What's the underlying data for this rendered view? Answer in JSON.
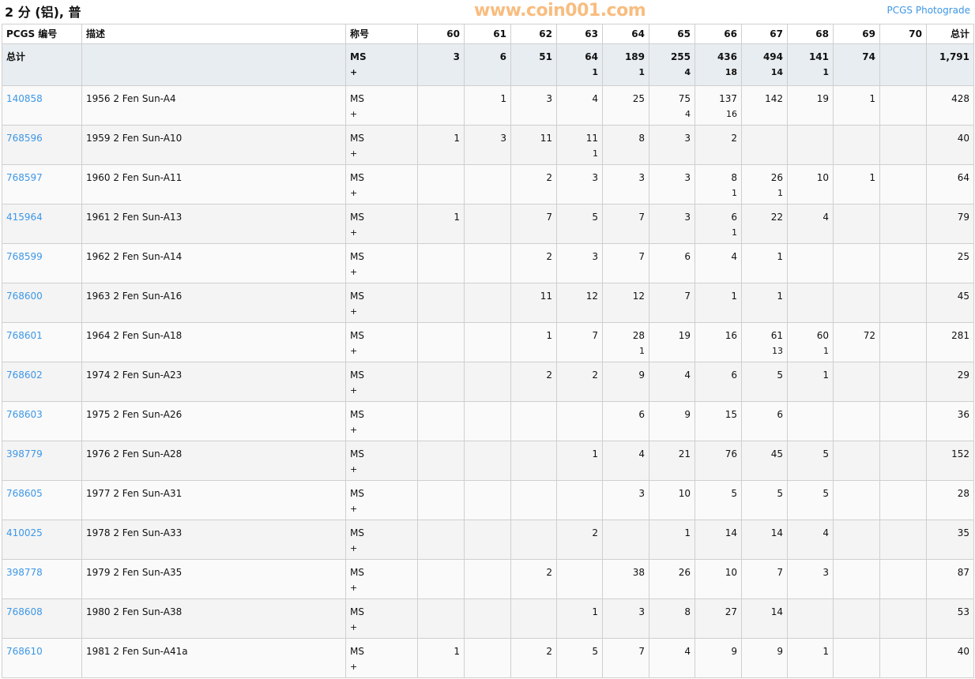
{
  "title": "2 分 (铝), 普",
  "photograde_link": "PCGS Photograde",
  "headers": {
    "pcgs": "PCGS 编号",
    "desc": "描述",
    "designation": "称号",
    "grades": [
      "60",
      "61",
      "62",
      "63",
      "64",
      "65",
      "66",
      "67",
      "68",
      "69",
      "70"
    ],
    "total": "总计"
  },
  "totals": {
    "label": "总计",
    "designation": "MS",
    "plus": "+",
    "cells": [
      [
        "3",
        ""
      ],
      [
        "6",
        ""
      ],
      [
        "51",
        ""
      ],
      [
        "64",
        "1"
      ],
      [
        "189",
        "1"
      ],
      [
        "255",
        "4"
      ],
      [
        "436",
        "18"
      ],
      [
        "494",
        "14"
      ],
      [
        "141",
        "1"
      ],
      [
        "74",
        ""
      ],
      [
        "",
        ""
      ]
    ],
    "total": "1,791"
  },
  "rows": [
    {
      "pcgs": "140858",
      "desc": "1956 2 Fen Sun-A4",
      "designation": "MS",
      "plus": "+",
      "cells": [
        [
          "",
          ""
        ],
        [
          "1",
          ""
        ],
        [
          "3",
          ""
        ],
        [
          "4",
          ""
        ],
        [
          "25",
          ""
        ],
        [
          "75",
          "4"
        ],
        [
          "137",
          "16"
        ],
        [
          "142",
          ""
        ],
        [
          "19",
          ""
        ],
        [
          "1",
          ""
        ],
        [
          "",
          ""
        ]
      ],
      "total": "428"
    },
    {
      "pcgs": "768596",
      "desc": "1959 2 Fen Sun-A10",
      "designation": "MS",
      "plus": "+",
      "cells": [
        [
          "1",
          ""
        ],
        [
          "3",
          ""
        ],
        [
          "11",
          ""
        ],
        [
          "11",
          "1"
        ],
        [
          "8",
          ""
        ],
        [
          "3",
          ""
        ],
        [
          "2",
          ""
        ],
        [
          "",
          ""
        ],
        [
          "",
          ""
        ],
        [
          "",
          ""
        ],
        [
          "",
          ""
        ]
      ],
      "total": "40"
    },
    {
      "pcgs": "768597",
      "desc": "1960 2 Fen Sun-A11",
      "designation": "MS",
      "plus": "+",
      "cells": [
        [
          "",
          ""
        ],
        [
          "",
          ""
        ],
        [
          "2",
          ""
        ],
        [
          "3",
          ""
        ],
        [
          "3",
          ""
        ],
        [
          "3",
          ""
        ],
        [
          "8",
          "1"
        ],
        [
          "26",
          "1"
        ],
        [
          "10",
          ""
        ],
        [
          "1",
          ""
        ],
        [
          "",
          ""
        ]
      ],
      "total": "64"
    },
    {
      "pcgs": "415964",
      "desc": "1961 2 Fen Sun-A13",
      "designation": "MS",
      "plus": "+",
      "cells": [
        [
          "1",
          ""
        ],
        [
          "",
          ""
        ],
        [
          "7",
          ""
        ],
        [
          "5",
          ""
        ],
        [
          "7",
          ""
        ],
        [
          "3",
          ""
        ],
        [
          "6",
          "1"
        ],
        [
          "22",
          ""
        ],
        [
          "4",
          ""
        ],
        [
          "",
          ""
        ],
        [
          "",
          ""
        ]
      ],
      "total": "79"
    },
    {
      "pcgs": "768599",
      "desc": "1962 2 Fen Sun-A14",
      "designation": "MS",
      "plus": "+",
      "cells": [
        [
          "",
          ""
        ],
        [
          "",
          ""
        ],
        [
          "2",
          ""
        ],
        [
          "3",
          ""
        ],
        [
          "7",
          ""
        ],
        [
          "6",
          ""
        ],
        [
          "4",
          ""
        ],
        [
          "1",
          ""
        ],
        [
          "",
          ""
        ],
        [
          "",
          ""
        ],
        [
          "",
          ""
        ]
      ],
      "total": "25"
    },
    {
      "pcgs": "768600",
      "desc": "1963 2 Fen Sun-A16",
      "designation": "MS",
      "plus": "+",
      "cells": [
        [
          "",
          ""
        ],
        [
          "",
          ""
        ],
        [
          "11",
          ""
        ],
        [
          "12",
          ""
        ],
        [
          "12",
          ""
        ],
        [
          "7",
          ""
        ],
        [
          "1",
          ""
        ],
        [
          "1",
          ""
        ],
        [
          "",
          ""
        ],
        [
          "",
          ""
        ],
        [
          "",
          ""
        ]
      ],
      "total": "45"
    },
    {
      "pcgs": "768601",
      "desc": "1964 2 Fen Sun-A18",
      "designation": "MS",
      "plus": "+",
      "cells": [
        [
          "",
          ""
        ],
        [
          "",
          ""
        ],
        [
          "1",
          ""
        ],
        [
          "7",
          ""
        ],
        [
          "28",
          "1"
        ],
        [
          "19",
          ""
        ],
        [
          "16",
          ""
        ],
        [
          "61",
          "13"
        ],
        [
          "60",
          "1"
        ],
        [
          "72",
          ""
        ],
        [
          "",
          ""
        ]
      ],
      "total": "281"
    },
    {
      "pcgs": "768602",
      "desc": "1974 2 Fen Sun-A23",
      "designation": "MS",
      "plus": "+",
      "cells": [
        [
          "",
          ""
        ],
        [
          "",
          ""
        ],
        [
          "2",
          ""
        ],
        [
          "2",
          ""
        ],
        [
          "9",
          ""
        ],
        [
          "4",
          ""
        ],
        [
          "6",
          ""
        ],
        [
          "5",
          ""
        ],
        [
          "1",
          ""
        ],
        [
          "",
          ""
        ],
        [
          "",
          ""
        ]
      ],
      "total": "29"
    },
    {
      "pcgs": "768603",
      "desc": "1975 2 Fen Sun-A26",
      "designation": "MS",
      "plus": "+",
      "cells": [
        [
          "",
          ""
        ],
        [
          "",
          ""
        ],
        [
          "",
          ""
        ],
        [
          "",
          ""
        ],
        [
          "6",
          ""
        ],
        [
          "9",
          ""
        ],
        [
          "15",
          ""
        ],
        [
          "6",
          ""
        ],
        [
          "",
          ""
        ],
        [
          "",
          ""
        ],
        [
          "",
          ""
        ]
      ],
      "total": "36"
    },
    {
      "pcgs": "398779",
      "desc": "1976 2 Fen Sun-A28",
      "designation": "MS",
      "plus": "+",
      "cells": [
        [
          "",
          ""
        ],
        [
          "",
          ""
        ],
        [
          "",
          ""
        ],
        [
          "1",
          ""
        ],
        [
          "4",
          ""
        ],
        [
          "21",
          ""
        ],
        [
          "76",
          ""
        ],
        [
          "45",
          ""
        ],
        [
          "5",
          ""
        ],
        [
          "",
          ""
        ],
        [
          "",
          ""
        ]
      ],
      "total": "152"
    },
    {
      "pcgs": "768605",
      "desc": "1977 2 Fen Sun-A31",
      "designation": "MS",
      "plus": "+",
      "cells": [
        [
          "",
          ""
        ],
        [
          "",
          ""
        ],
        [
          "",
          ""
        ],
        [
          "",
          ""
        ],
        [
          "3",
          ""
        ],
        [
          "10",
          ""
        ],
        [
          "5",
          ""
        ],
        [
          "5",
          ""
        ],
        [
          "5",
          ""
        ],
        [
          "",
          ""
        ],
        [
          "",
          ""
        ]
      ],
      "total": "28"
    },
    {
      "pcgs": "410025",
      "desc": "1978 2 Fen Sun-A33",
      "designation": "MS",
      "plus": "+",
      "cells": [
        [
          "",
          ""
        ],
        [
          "",
          ""
        ],
        [
          "",
          ""
        ],
        [
          "2",
          ""
        ],
        [
          "",
          ""
        ],
        [
          "1",
          ""
        ],
        [
          "14",
          ""
        ],
        [
          "14",
          ""
        ],
        [
          "4",
          ""
        ],
        [
          "",
          ""
        ],
        [
          "",
          ""
        ]
      ],
      "total": "35"
    },
    {
      "pcgs": "398778",
      "desc": "1979 2 Fen Sun-A35",
      "designation": "MS",
      "plus": "+",
      "cells": [
        [
          "",
          ""
        ],
        [
          "",
          ""
        ],
        [
          "2",
          ""
        ],
        [
          "",
          ""
        ],
        [
          "38",
          ""
        ],
        [
          "26",
          ""
        ],
        [
          "10",
          ""
        ],
        [
          "7",
          ""
        ],
        [
          "3",
          ""
        ],
        [
          "",
          ""
        ],
        [
          "",
          ""
        ]
      ],
      "total": "87"
    },
    {
      "pcgs": "768608",
      "desc": "1980 2 Fen Sun-A38",
      "designation": "MS",
      "plus": "+",
      "cells": [
        [
          "",
          ""
        ],
        [
          "",
          ""
        ],
        [
          "",
          ""
        ],
        [
          "1",
          ""
        ],
        [
          "3",
          ""
        ],
        [
          "8",
          ""
        ],
        [
          "27",
          ""
        ],
        [
          "14",
          ""
        ],
        [
          "",
          ""
        ],
        [
          "",
          ""
        ],
        [
          "",
          ""
        ]
      ],
      "total": "53"
    },
    {
      "pcgs": "768610",
      "desc": "1981 2 Fen Sun-A41a",
      "designation": "MS",
      "plus": "+",
      "cells": [
        [
          "1",
          ""
        ],
        [
          "",
          ""
        ],
        [
          "2",
          ""
        ],
        [
          "5",
          ""
        ],
        [
          "7",
          ""
        ],
        [
          "4",
          ""
        ],
        [
          "9",
          ""
        ],
        [
          "9",
          ""
        ],
        [
          "1",
          ""
        ],
        [
          "",
          ""
        ],
        [
          "",
          ""
        ]
      ],
      "total": "40"
    }
  ],
  "watermark": "www.coin001.com",
  "colors": {
    "link": "#3d97e6",
    "totals_bg": "#e8edf1",
    "watermark": "#f7b26a"
  }
}
